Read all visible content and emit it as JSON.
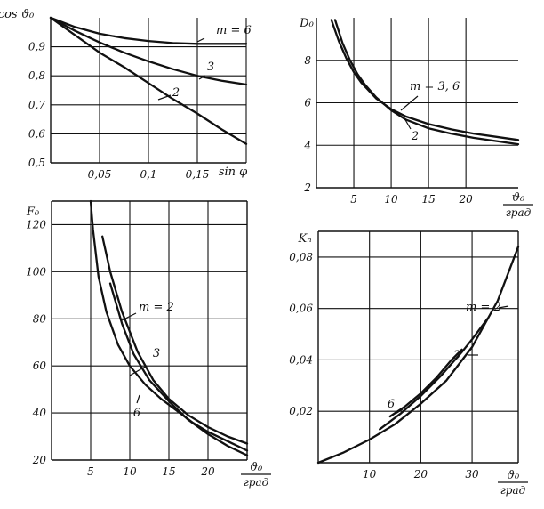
{
  "chart_data": [
    {
      "id": "cos-theta",
      "type": "line",
      "ylabel": "cos ϑ₀",
      "xlabel": "sin φ",
      "xlim": [
        0,
        0.2
      ],
      "ylim": [
        0.5,
        1.0
      ],
      "x_ticks": [
        0.05,
        0.1,
        0.15
      ],
      "x_tick_labels": [
        "0,05",
        "0,1",
        "0,15"
      ],
      "y_ticks": [
        0.5,
        0.6,
        0.7,
        0.8,
        0.9
      ],
      "y_tick_labels": [
        "0,5",
        "0,6",
        "0,7",
        "0,8",
        "0,9"
      ],
      "x_grid": [
        0.05,
        0.1,
        0.15,
        0.2
      ],
      "y_grid": [
        0.6,
        0.7,
        0.8,
        0.9
      ],
      "series": [
        {
          "name": "m = 6",
          "label": "m = 6",
          "x": [
            0,
            0.025,
            0.05,
            0.075,
            0.1,
            0.125,
            0.15,
            0.175,
            0.2
          ],
          "y": [
            1.0,
            0.968,
            0.945,
            0.93,
            0.92,
            0.913,
            0.91,
            0.91,
            0.91
          ]
        },
        {
          "name": "3",
          "label": "3",
          "x": [
            0,
            0.025,
            0.05,
            0.075,
            0.1,
            0.125,
            0.15,
            0.175,
            0.2
          ],
          "y": [
            1.0,
            0.955,
            0.915,
            0.88,
            0.85,
            0.823,
            0.8,
            0.783,
            0.77
          ]
        },
        {
          "name": "2",
          "label": "2",
          "x": [
            0,
            0.025,
            0.05,
            0.075,
            0.1,
            0.125,
            0.15,
            0.175,
            0.2
          ],
          "y": [
            1.0,
            0.94,
            0.88,
            0.83,
            0.775,
            0.72,
            0.67,
            0.615,
            0.565
          ]
        }
      ]
    },
    {
      "id": "D0",
      "type": "line",
      "ylabel": "D₀",
      "xlabel": "ϑ₀",
      "xlabel_unit": "град",
      "xlim": [
        0,
        27
      ],
      "ylim": [
        2,
        10
      ],
      "x_ticks": [
        5,
        10,
        15,
        20
      ],
      "x_tick_labels": [
        "5",
        "10",
        "15",
        "20"
      ],
      "y_ticks": [
        2,
        4,
        6,
        8
      ],
      "y_tick_labels": [
        "2",
        "4",
        "6",
        "8"
      ],
      "x_grid": [
        5,
        10,
        15,
        20
      ],
      "y_grid": [
        4,
        6,
        8
      ],
      "series": [
        {
          "name": "m = 3, 6",
          "label": "m = 3, 6",
          "x": [
            2,
            3,
            4,
            5,
            6,
            8,
            10,
            12,
            15,
            18,
            21,
            24,
            27
          ],
          "y": [
            9.9,
            8.9,
            8.1,
            7.45,
            6.95,
            6.2,
            5.7,
            5.35,
            5.0,
            4.75,
            4.55,
            4.4,
            4.25
          ]
        },
        {
          "name": "2",
          "label": "2",
          "x": [
            2.5,
            3.5,
            4.5,
            5.5,
            6.5,
            8,
            10,
            12,
            15,
            18,
            21,
            24,
            27
          ],
          "y": [
            9.9,
            8.8,
            8.0,
            7.35,
            6.85,
            6.25,
            5.65,
            5.2,
            4.8,
            4.55,
            4.35,
            4.2,
            4.05
          ]
        }
      ]
    },
    {
      "id": "F0",
      "type": "line",
      "ylabel": "F₀",
      "xlabel": "ϑ₀",
      "xlabel_unit": "град",
      "xlim": [
        0,
        25
      ],
      "ylim": [
        20,
        130
      ],
      "x_ticks": [
        5,
        10,
        15,
        20
      ],
      "x_tick_labels": [
        "5",
        "10",
        "15",
        "20"
      ],
      "y_ticks": [
        20,
        40,
        60,
        80,
        100,
        120
      ],
      "y_tick_labels": [
        "20",
        "40",
        "60",
        "80",
        "100",
        "120"
      ],
      "x_grid": [
        5,
        10,
        15,
        20
      ],
      "y_grid": [
        40,
        60,
        80,
        100,
        120
      ],
      "series": [
        {
          "name": "m = 2",
          "label": "m = 2",
          "x": [
            6.5,
            7.5,
            9,
            11,
            13,
            15,
            17.5,
            20,
            22.5,
            25
          ],
          "y": [
            115,
            100,
            83,
            66,
            54,
            46,
            39,
            34,
            30,
            27
          ]
        },
        {
          "name": "3",
          "label": "3",
          "x": [
            5,
            5.3,
            6,
            7,
            8.5,
            10,
            12,
            14,
            16,
            18,
            20,
            22.5,
            25
          ],
          "y": [
            130,
            118,
            98,
            83,
            69,
            60,
            52,
            46,
            41,
            36,
            32,
            28,
            24
          ]
        },
        {
          "name": "6",
          "label": "6",
          "x": [
            7.5,
            9,
            10.5,
            12.5,
            15,
            17.5,
            20,
            22.5,
            25
          ],
          "y": [
            95,
            78,
            65,
            54,
            45,
            37,
            31,
            26,
            22
          ]
        }
      ]
    },
    {
      "id": "Kn",
      "type": "line",
      "ylabel": "Kₙ",
      "xlabel": "ϑ₀",
      "xlabel_unit": "град",
      "xlim": [
        0,
        39
      ],
      "ylim": [
        0,
        0.09
      ],
      "x_ticks": [
        10,
        20,
        30
      ],
      "x_tick_labels": [
        "10",
        "20",
        "30"
      ],
      "y_ticks": [
        0.02,
        0.04,
        0.06,
        0.08
      ],
      "y_tick_labels": [
        "0,02",
        "0,04",
        "0,06",
        "0,08"
      ],
      "x_grid": [
        10,
        20,
        30
      ],
      "y_grid": [
        0.02,
        0.04,
        0.06,
        0.08
      ],
      "series": [
        {
          "name": "m = 2",
          "label": "m = 2",
          "x": [
            0,
            5,
            10,
            15,
            20,
            25,
            30,
            35,
            39
          ],
          "y": [
            0,
            0.004,
            0.009,
            0.015,
            0.023,
            0.032,
            0.045,
            0.063,
            0.084
          ]
        },
        {
          "name": "3",
          "label": "3",
          "x": [
            12,
            16,
            20,
            24,
            28,
            30,
            33
          ],
          "y": [
            0.013,
            0.019,
            0.026,
            0.034,
            0.043,
            0.048,
            0.056
          ]
        },
        {
          "name": "6",
          "label": "6",
          "x": [
            14,
            17,
            20,
            23,
            26,
            28
          ],
          "y": [
            0.018,
            0.022,
            0.027,
            0.033,
            0.04,
            0.044
          ]
        }
      ]
    }
  ]
}
